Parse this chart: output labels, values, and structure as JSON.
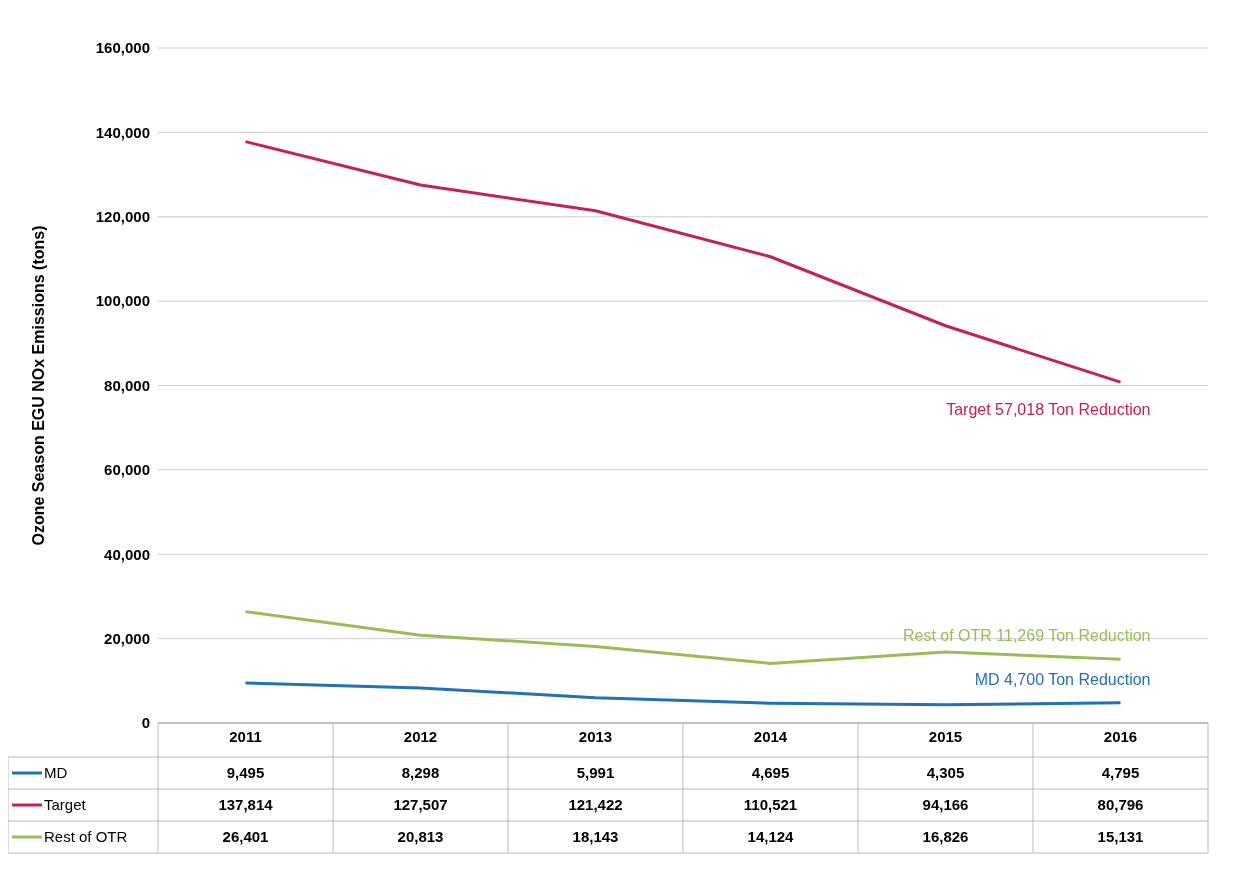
{
  "chart_data": {
    "type": "line",
    "ylabel": "Ozone Season EGU NOx Emissions (tons)",
    "categories": [
      "2011",
      "2012",
      "2013",
      "2014",
      "2015",
      "2016"
    ],
    "series": [
      {
        "name": "MD",
        "color": "#2470b3",
        "values": [
          9495,
          8298,
          5991,
          4695,
          4305,
          4795
        ],
        "value_labels": [
          "9,495",
          "8,298",
          "5,991",
          "4,695",
          "4,305",
          "4,795"
        ]
      },
      {
        "name": "Target",
        "color": "#c3234f",
        "values": [
          137814,
          127507,
          121422,
          110521,
          94166,
          80796
        ],
        "value_labels": [
          "137,814",
          "127,507",
          "121,422",
          "110,521",
          "94,166",
          "80,796"
        ]
      },
      {
        "name": "Rest of OTR",
        "color": "#9bbb59",
        "values": [
          26401,
          20813,
          18143,
          14124,
          16826,
          15131
        ],
        "value_labels": [
          "26,401",
          "20,813",
          "18,143",
          "14,124",
          "16,826",
          "15,131"
        ]
      }
    ],
    "ylim": [
      0,
      160000
    ],
    "yticks": [
      0,
      {
        "value": 20000,
        "label": "20,000"
      },
      {
        "value": 40000,
        "label": "40,000"
      },
      {
        "value": 60000,
        "label": "60,000"
      },
      {
        "value": 80000,
        "label": "80,000"
      },
      {
        "value": 100000,
        "label": "100,000"
      },
      {
        "value": 120000,
        "label": "120,000"
      },
      {
        "value": 140000,
        "label": "140,000"
      },
      {
        "value": 160000,
        "label": "160,000"
      }
    ],
    "grid": "y",
    "legend": "bottom",
    "marker": "none",
    "line_style": "solid",
    "annotations": [
      {
        "text": "Target 57,018 Ton Reduction",
        "x": "2016",
        "y": 80796
      },
      {
        "text": "Rest of OTR 11,269 Ton Reduction",
        "x": "2016",
        "y": 15131
      },
      {
        "text": "MD 4,700 Ton Reduction",
        "x": "2016",
        "y": 4795
      }
    ]
  }
}
